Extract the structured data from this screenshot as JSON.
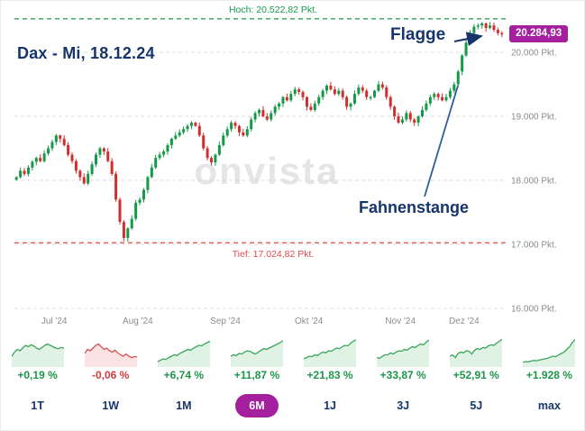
{
  "header": {
    "title": "Dax - Mi, 18.12.24",
    "price_badge": "20.284,93"
  },
  "annotations": {
    "flag": "Flagge",
    "pole": "Fahnenstange"
  },
  "watermark": "onvista",
  "chart_data": {
    "type": "candlestick",
    "title": "Dax - Mi, 18.12.24",
    "instrument": "DAX",
    "last_price": 20284.93,
    "high_marker": {
      "label": "Hoch: 20.522,82 Pkt.",
      "value": 20522.82
    },
    "low_marker": {
      "label": "Tief: 17.024,82 Pkt.",
      "value": 17024.82
    },
    "y_axis": {
      "unit": "Pkt.",
      "ticks": [
        {
          "label": "20.000 Pkt.",
          "value": 20000
        },
        {
          "label": "19.000 Pkt.",
          "value": 19000
        },
        {
          "label": "18.000 Pkt.",
          "value": 18000
        },
        {
          "label": "17.000 Pkt.",
          "value": 17000
        },
        {
          "label": "16.000 Pkt.",
          "value": 16000
        }
      ]
    },
    "x_axis": {
      "months": [
        {
          "label": "Jul '24",
          "idx": 10
        },
        {
          "label": "Aug '24",
          "idx": 31
        },
        {
          "label": "Sep '24",
          "idx": 53
        },
        {
          "label": "Okt '24",
          "idx": 74
        },
        {
          "label": "Nov '24",
          "idx": 97
        },
        {
          "label": "Dez '24",
          "idx": 113
        }
      ]
    },
    "closes": [
      18050,
      18150,
      18100,
      18200,
      18290,
      18350,
      18300,
      18420,
      18500,
      18600,
      18700,
      18650,
      18550,
      18400,
      18300,
      18150,
      18050,
      17950,
      18100,
      18250,
      18400,
      18500,
      18450,
      18300,
      18100,
      17700,
      17350,
      17100,
      17250,
      17400,
      17650,
      17700,
      17850,
      18050,
      18200,
      18350,
      18400,
      18450,
      18550,
      18650,
      18700,
      18750,
      18800,
      18850,
      18900,
      18850,
      18700,
      18500,
      18350,
      18280,
      18400,
      18550,
      18700,
      18800,
      18900,
      18850,
      18750,
      18700,
      18800,
      18950,
      19050,
      19100,
      19000,
      18950,
      19050,
      19150,
      19200,
      19300,
      19250,
      19350,
      19420,
      19380,
      19300,
      19150,
      19100,
      19200,
      19300,
      19400,
      19480,
      19420,
      19350,
      19400,
      19300,
      19150,
      19200,
      19350,
      19450,
      19400,
      19300,
      19300,
      19400,
      19500,
      19450,
      19300,
      19150,
      19000,
      18900,
      18950,
      19050,
      18950,
      18900,
      19000,
      19100,
      19200,
      19300,
      19350,
      19300,
      19250,
      19300,
      19400,
      19500,
      19700,
      19950,
      20150,
      20300,
      20400,
      20420,
      20450,
      20380,
      20420,
      20350,
      20300,
      20285
    ],
    "colors": {
      "up": "#149a47",
      "down": "#d22e2e",
      "high_line": "#169c4b",
      "low_line": "#e24a4a",
      "spark_up_line": "#3aa65a",
      "spark_up_fill": "#e0f2e3",
      "spark_down_line": "#d65252",
      "spark_down_fill": "#fbe3e3",
      "accent": "#a5209e",
      "navy": "#17356b"
    }
  },
  "periods": [
    {
      "label": "1T",
      "change": "+0,19 %",
      "positive": true,
      "spark": [
        30,
        45,
        55,
        50,
        60,
        70,
        65,
        72,
        68,
        60,
        55,
        62,
        70,
        75,
        70,
        65,
        60,
        58,
        62,
        60
      ]
    },
    {
      "label": "1W",
      "change": "-0,06 %",
      "positive": false,
      "spark": [
        40,
        55,
        50,
        60,
        70,
        75,
        65,
        55,
        60,
        50,
        45,
        52,
        42,
        35,
        30,
        38,
        30,
        25,
        28,
        28
      ]
    },
    {
      "label": "1M",
      "change": "+6,74 %",
      "positive": true,
      "spark": [
        10,
        15,
        20,
        18,
        25,
        30,
        35,
        32,
        40,
        45,
        50,
        55,
        52,
        60,
        65,
        70,
        68,
        75,
        80,
        85
      ]
    },
    {
      "label": "6M",
      "change": "+11,87 %",
      "positive": true,
      "spark": [
        30,
        35,
        32,
        40,
        38,
        45,
        50,
        48,
        42,
        38,
        45,
        52,
        58,
        55,
        60,
        65,
        70,
        75,
        80,
        88
      ]
    },
    {
      "label": "1J",
      "change": "+21,83 %",
      "positive": true,
      "spark": [
        20,
        25,
        30,
        28,
        35,
        32,
        40,
        45,
        42,
        50,
        48,
        55,
        60,
        58,
        65,
        70,
        68,
        78,
        85,
        90
      ]
    },
    {
      "label": "3J",
      "change": "+33,87 %",
      "positive": true,
      "spark": [
        25,
        22,
        30,
        35,
        35,
        42,
        38,
        45,
        50,
        48,
        55,
        52,
        60,
        65,
        62,
        70,
        75,
        72,
        82,
        90
      ]
    },
    {
      "label": "5J",
      "change": "+52,91 %",
      "positive": true,
      "spark": [
        30,
        35,
        25,
        40,
        45,
        42,
        50,
        48,
        38,
        52,
        58,
        55,
        62,
        60,
        68,
        72,
        70,
        78,
        85,
        92
      ]
    },
    {
      "label": "max",
      "change": "+1.928 %",
      "positive": true,
      "spark": [
        8,
        10,
        9,
        12,
        14,
        13,
        16,
        18,
        20,
        22,
        26,
        30,
        28,
        35,
        40,
        45,
        55,
        65,
        80,
        92
      ]
    }
  ],
  "active_period": "6M"
}
